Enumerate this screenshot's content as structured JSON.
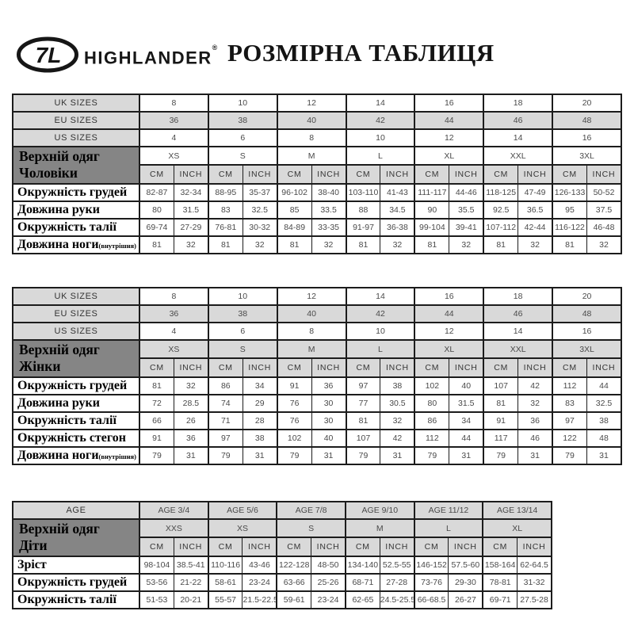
{
  "page": {
    "title": "РОЗМІРНА ТАБЛИЦЯ"
  },
  "brand": {
    "name": "HIGHLANDER",
    "registered_mark": "®",
    "logo_monogram": "7L"
  },
  "units": [
    "CM",
    "INCH"
  ],
  "colors": {
    "shaded_cell": "#d9d9d9",
    "group_header_cell": "#858585",
    "border": "#1c1c1c",
    "value_text": "#4a4a4a",
    "label_text": "#000000"
  },
  "tables": [
    {
      "name": "men",
      "group_label_lines": [
        "Верхній одяг",
        "Чоловіки"
      ],
      "size_rows": [
        {
          "label": "UK SIZES",
          "shaded": false,
          "values": [
            "8",
            "10",
            "12",
            "14",
            "16",
            "18",
            "20"
          ]
        },
        {
          "label": "EU SIZES",
          "shaded": true,
          "values": [
            "36",
            "38",
            "40",
            "42",
            "44",
            "46",
            "48"
          ]
        },
        {
          "label": "US SIZES",
          "shaded": false,
          "values": [
            "4",
            "6",
            "8",
            "10",
            "12",
            "14",
            "16"
          ]
        }
      ],
      "letters_row": {
        "shaded": false,
        "values": [
          "XS",
          "S",
          "M",
          "L",
          "XL",
          "XXL",
          "3XL"
        ]
      },
      "measure_rows": [
        {
          "label": "Окружність грудей",
          "suffix": "",
          "pairs": [
            [
              "82-87",
              "32-34"
            ],
            [
              "88-95",
              "35-37"
            ],
            [
              "96-102",
              "38-40"
            ],
            [
              "103-110",
              "41-43"
            ],
            [
              "111-117",
              "44-46"
            ],
            [
              "118-125",
              "47-49"
            ],
            [
              "126-133",
              "50-52"
            ]
          ]
        },
        {
          "label": "Довжина руки",
          "suffix": "",
          "pairs": [
            [
              "80",
              "31.5"
            ],
            [
              "83",
              "32.5"
            ],
            [
              "85",
              "33.5"
            ],
            [
              "88",
              "34.5"
            ],
            [
              "90",
              "35.5"
            ],
            [
              "92.5",
              "36.5"
            ],
            [
              "95",
              "37.5"
            ]
          ]
        },
        {
          "label": "Окружність талії",
          "suffix": "",
          "pairs": [
            [
              "69-74",
              "27-29"
            ],
            [
              "76-81",
              "30-32"
            ],
            [
              "84-89",
              "33-35"
            ],
            [
              "91-97",
              "36-38"
            ],
            [
              "99-104",
              "39-41"
            ],
            [
              "107-112",
              "42-44"
            ],
            [
              "116-122",
              "46-48"
            ]
          ]
        },
        {
          "label": "Довжина ноги",
          "suffix": "(внутрішня)",
          "pairs": [
            [
              "81",
              "32"
            ],
            [
              "81",
              "32"
            ],
            [
              "81",
              "32"
            ],
            [
              "81",
              "32"
            ],
            [
              "81",
              "32"
            ],
            [
              "81",
              "32"
            ],
            [
              "81",
              "32"
            ]
          ]
        }
      ]
    },
    {
      "name": "women",
      "group_label_lines": [
        "Верхній одяг",
        "Жінки"
      ],
      "size_rows": [
        {
          "label": "UK SIZES",
          "shaded": false,
          "values": [
            "8",
            "10",
            "12",
            "14",
            "16",
            "18",
            "20"
          ]
        },
        {
          "label": "EU SIZES",
          "shaded": true,
          "values": [
            "36",
            "38",
            "40",
            "42",
            "44",
            "46",
            "48"
          ]
        },
        {
          "label": "US SIZES",
          "shaded": false,
          "values": [
            "4",
            "6",
            "8",
            "10",
            "12",
            "14",
            "16"
          ]
        }
      ],
      "letters_row": {
        "shaded": true,
        "values": [
          "XS",
          "S",
          "M",
          "L",
          "XL",
          "XXL",
          "3XL"
        ]
      },
      "measure_rows": [
        {
          "label": "Окружність грудей",
          "suffix": "",
          "pairs": [
            [
              "81",
              "32"
            ],
            [
              "86",
              "34"
            ],
            [
              "91",
              "36"
            ],
            [
              "97",
              "38"
            ],
            [
              "102",
              "40"
            ],
            [
              "107",
              "42"
            ],
            [
              "112",
              "44"
            ]
          ]
        },
        {
          "label": "Довжина руки",
          "suffix": "",
          "pairs": [
            [
              "72",
              "28.5"
            ],
            [
              "74",
              "29"
            ],
            [
              "76",
              "30"
            ],
            [
              "77",
              "30.5"
            ],
            [
              "80",
              "31.5"
            ],
            [
              "81",
              "32"
            ],
            [
              "83",
              "32.5"
            ]
          ]
        },
        {
          "label": "Окружність талії",
          "suffix": "",
          "pairs": [
            [
              "66",
              "26"
            ],
            [
              "71",
              "28"
            ],
            [
              "76",
              "30"
            ],
            [
              "81",
              "32"
            ],
            [
              "86",
              "34"
            ],
            [
              "91",
              "36"
            ],
            [
              "97",
              "38"
            ]
          ]
        },
        {
          "label": "Окружність стегон",
          "suffix": "",
          "pairs": [
            [
              "91",
              "36"
            ],
            [
              "97",
              "38"
            ],
            [
              "102",
              "40"
            ],
            [
              "107",
              "42"
            ],
            [
              "112",
              "44"
            ],
            [
              "117",
              "46"
            ],
            [
              "122",
              "48"
            ]
          ]
        },
        {
          "label": "Довжина ноги",
          "suffix": "(внутрішня)",
          "pairs": [
            [
              "79",
              "31"
            ],
            [
              "79",
              "31"
            ],
            [
              "79",
              "31"
            ],
            [
              "79",
              "31"
            ],
            [
              "79",
              "31"
            ],
            [
              "79",
              "31"
            ],
            [
              "79",
              "31"
            ]
          ]
        }
      ]
    },
    {
      "name": "kids",
      "group_label_lines": [
        "Верхній одяг",
        "Діти"
      ],
      "size_rows": [
        {
          "label": "AGE",
          "shaded": true,
          "values": [
            "AGE 3/4",
            "AGE 5/6",
            "AGE 7/8",
            "AGE 9/10",
            "AGE 11/12",
            "AGE 13/14"
          ]
        }
      ],
      "letters_row": {
        "shaded": true,
        "values": [
          "XXS",
          "XS",
          "S",
          "M",
          "L",
          "XL"
        ]
      },
      "measure_rows": [
        {
          "label": "Зріст",
          "suffix": "",
          "pairs": [
            [
              "98-104",
              "38.5-41"
            ],
            [
              "110-116",
              "43-46"
            ],
            [
              "122-128",
              "48-50"
            ],
            [
              "134-140",
              "52.5-55"
            ],
            [
              "146-152",
              "57.5-60"
            ],
            [
              "158-164",
              "62-64.5"
            ]
          ]
        },
        {
          "label": "Окружність грудей",
          "suffix": "",
          "pairs": [
            [
              "53-56",
              "21-22"
            ],
            [
              "58-61",
              "23-24"
            ],
            [
              "63-66",
              "25-26"
            ],
            [
              "68-71",
              "27-28"
            ],
            [
              "73-76",
              "29-30"
            ],
            [
              "78-81",
              "31-32"
            ]
          ]
        },
        {
          "label": "Окружність талії",
          "suffix": "",
          "pairs": [
            [
              "51-53",
              "20-21"
            ],
            [
              "55-57",
              "21.5-22.5"
            ],
            [
              "59-61",
              "23-24"
            ],
            [
              "62-65",
              "24.5-25.5"
            ],
            [
              "66-68.5",
              "26-27"
            ],
            [
              "69-71",
              "27.5-28"
            ]
          ]
        }
      ]
    }
  ]
}
